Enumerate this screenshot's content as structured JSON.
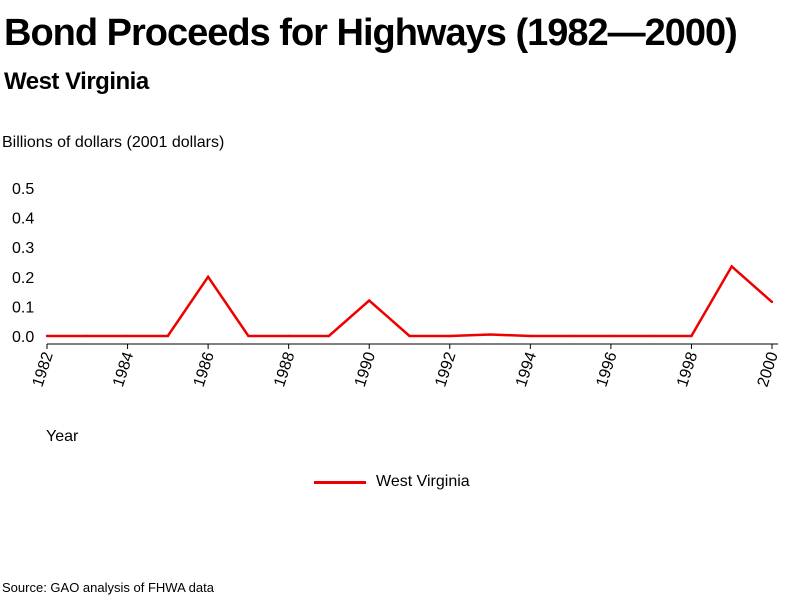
{
  "title": "Bond Proceeds for Highways (1982—2000)",
  "subtitle": "West Virginia",
  "source": "Source: GAO analysis of FHWA data",
  "colors": {
    "series": "#ee0000",
    "axis": "#000000"
  },
  "chart_data": {
    "type": "line",
    "title": "Bond Proceeds for Highways (1982—2000)",
    "subtitle": "West Virginia",
    "ylabel": "Billions of dollars (2001 dollars)",
    "xlabel": "Year",
    "x": [
      1982,
      1983,
      1984,
      1985,
      1986,
      1987,
      1988,
      1989,
      1990,
      1991,
      1992,
      1993,
      1994,
      1995,
      1996,
      1997,
      1998,
      1999,
      2000
    ],
    "series": [
      {
        "name": "West Virginia",
        "values": [
          0.0,
          0.0,
          0.0,
          0.0,
          0.2,
          0.0,
          0.0,
          0.0,
          0.12,
          0.0,
          0.0,
          0.005,
          0.0,
          0.0,
          0.0,
          0.0,
          0.0,
          0.235,
          0.115
        ]
      }
    ],
    "x_ticks": [
      "1982",
      "1984",
      "1986",
      "1988",
      "1990",
      "1992",
      "1994",
      "1996",
      "1998",
      "2000"
    ],
    "y_ticks": [
      "0.0",
      "0.1",
      "0.2",
      "0.3",
      "0.4",
      "0.5"
    ],
    "xlim": [
      1982,
      2000
    ],
    "ylim": [
      0,
      0.5
    ],
    "grid": false,
    "legend_position": "bottom-center"
  }
}
